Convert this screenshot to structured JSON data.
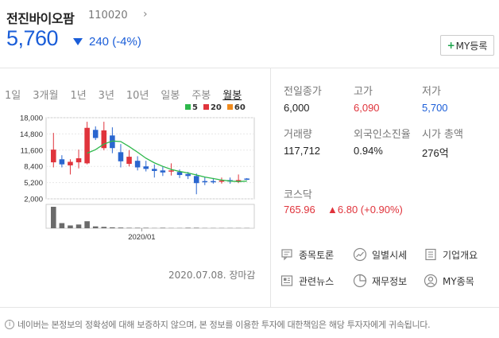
{
  "stock": {
    "name": "전진바이오팜",
    "code": "110020",
    "price": "5,760",
    "change": "240 (-4%)",
    "my_button": "MY등록"
  },
  "periods": [
    "1일",
    "3개월",
    "1년",
    "3년",
    "10년",
    "일봉",
    "주봉",
    "월봉"
  ],
  "active_period": "월봉",
  "ma_legend": [
    {
      "label": "5",
      "color": "#2db84b"
    },
    {
      "label": "20",
      "color": "#e0343c"
    },
    {
      "label": "60",
      "color": "#f08c1e"
    }
  ],
  "chart_data": {
    "type": "candlestick",
    "y_ticks": [
      "18,000",
      "14,800",
      "11,600",
      "8,400",
      "5,200",
      "2,000"
    ],
    "ylim": [
      2000,
      18000
    ],
    "x_label": "2020/01",
    "candles": [
      {
        "o": 9200,
        "c": 11700,
        "h": 15000,
        "l": 8200
      },
      {
        "o": 9800,
        "c": 8800,
        "h": 10600,
        "l": 8200
      },
      {
        "o": 8600,
        "c": 9300,
        "h": 9800,
        "l": 6800
      },
      {
        "o": 9200,
        "c": 10000,
        "h": 11700,
        "l": 8000
      },
      {
        "o": 9000,
        "c": 16000,
        "h": 17200,
        "l": 8800
      },
      {
        "o": 15600,
        "c": 14000,
        "h": 16300,
        "l": 13600
      },
      {
        "o": 12000,
        "c": 15500,
        "h": 17200,
        "l": 11600
      },
      {
        "o": 14500,
        "c": 12000,
        "h": 16100,
        "l": 11000
      },
      {
        "o": 11200,
        "c": 9400,
        "h": 12800,
        "l": 8200
      },
      {
        "o": 8900,
        "c": 10300,
        "h": 11600,
        "l": 8400
      },
      {
        "o": 9500,
        "c": 8200,
        "h": 10400,
        "l": 7600
      },
      {
        "o": 8400,
        "c": 7900,
        "h": 9500,
        "l": 7400
      },
      {
        "o": 7900,
        "c": 7500,
        "h": 8800,
        "l": 6200
      },
      {
        "o": 7600,
        "c": 7200,
        "h": 8400,
        "l": 6500
      },
      {
        "o": 7400,
        "c": 7600,
        "h": 9000,
        "l": 6600
      },
      {
        "o": 7300,
        "c": 6700,
        "h": 7800,
        "l": 6100
      },
      {
        "o": 6900,
        "c": 6500,
        "h": 7300,
        "l": 5900
      },
      {
        "o": 6500,
        "c": 5100,
        "h": 7000,
        "l": 2900
      },
      {
        "o": 5500,
        "c": 5300,
        "h": 6300,
        "l": 4700
      },
      {
        "o": 5500,
        "c": 5300,
        "h": 6100,
        "l": 5000
      },
      {
        "o": 5400,
        "c": 5600,
        "h": 6200,
        "l": 5000
      },
      {
        "o": 5700,
        "c": 5400,
        "h": 6200,
        "l": 5000
      },
      {
        "o": 5400,
        "c": 5700,
        "h": 6800,
        "l": 5100
      },
      {
        "o": 6000,
        "c": 5760,
        "h": 6090,
        "l": 5700
      }
    ],
    "ma5": [
      null,
      null,
      null,
      null,
      11000,
      11700,
      12800,
      13400,
      13300,
      12300,
      11200,
      10000,
      9100,
      8400,
      7800,
      7400,
      7100,
      6700,
      6300,
      6000,
      5700,
      5500,
      5400,
      5500
    ],
    "volume": [
      92,
      22,
      12,
      16,
      30,
      8,
      6,
      4,
      3,
      2,
      2,
      2,
      1,
      2,
      1,
      1,
      2,
      2,
      1,
      1,
      1,
      1,
      1,
      1
    ]
  },
  "stats": {
    "prev_close_label": "전일종가",
    "prev_close": "6,000",
    "high_label": "고가",
    "high": "6,090",
    "low_label": "저가",
    "low": "5,700",
    "volume_label": "거래량",
    "volume": "117,712",
    "foreign_label": "외국인소진율",
    "foreign": "0.94%",
    "mcap_label": "시가 총액",
    "mcap": "276억"
  },
  "kosdaq": {
    "label": "코스닥",
    "value": "765.96",
    "change": "▲6.80 (+0.90%)"
  },
  "links": {
    "forum": "종목토론",
    "daily": "일별시세",
    "company": "기업개요",
    "news": "관련뉴스",
    "finance": "재무정보",
    "my": "MY종목"
  },
  "date_note": "2020.07.08. 장마감",
  "disclaimer": "네이버는 본정보의 정확성에 대해 보증하지 않으며, 본 정보를 이용한 투자에 대한책임은 해당 투자자에게 귀속됩니다."
}
